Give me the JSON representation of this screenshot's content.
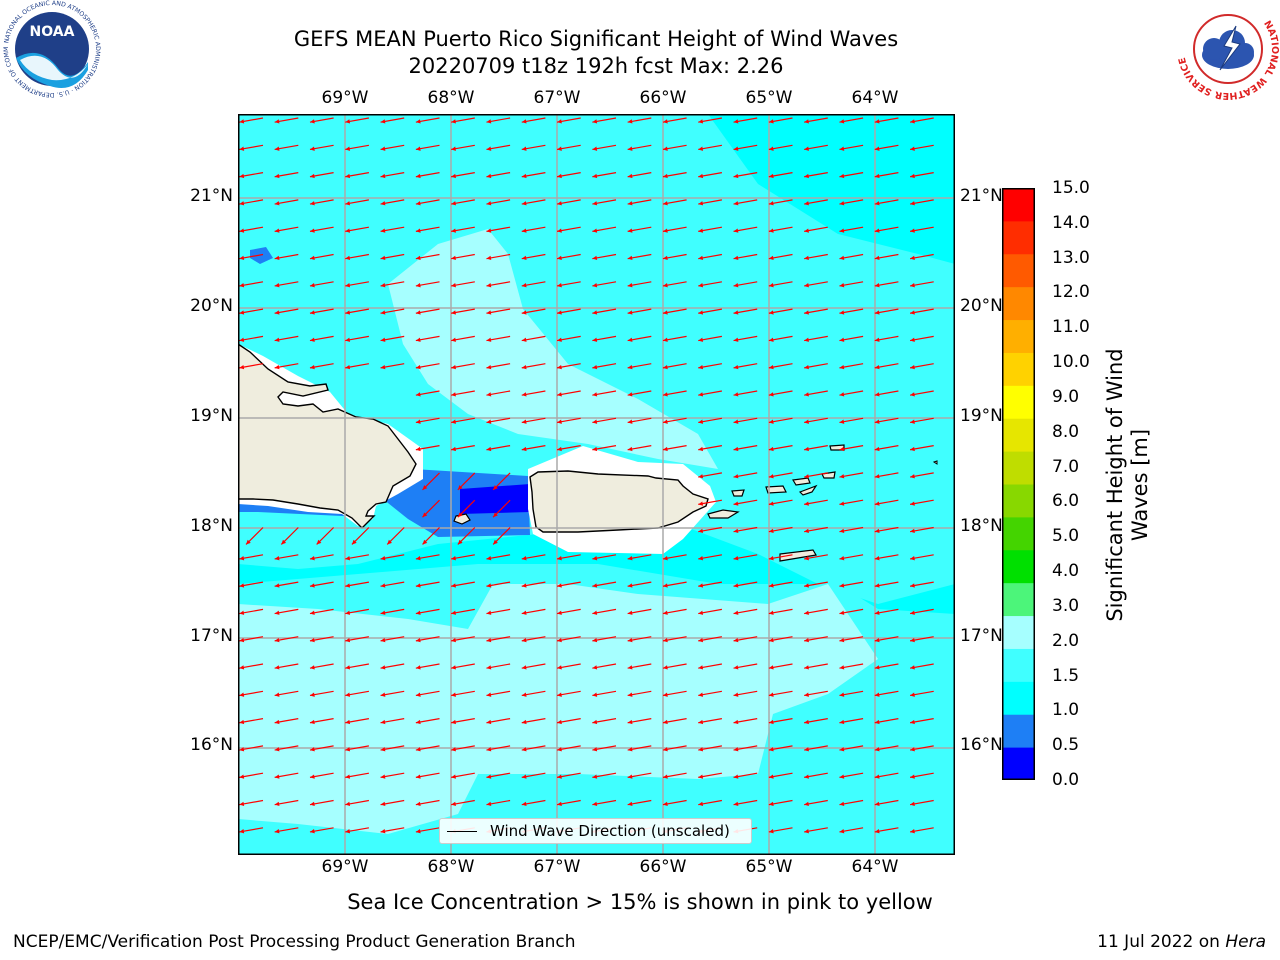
{
  "title": {
    "line1": "GEFS MEAN Puerto Rico Significant Height of Wind Waves",
    "line2": "20220709 t18z 192h fcst   Max: 2.26"
  },
  "logos": {
    "noaa_text": "NOAA",
    "noaa_ring_text": "NATIONAL OCEANIC AND ATMOSPHERIC ADMINISTRATION · U.S. DEPARTMENT OF COMMERCE",
    "nws_ring_text": "NATIONAL WEATHER SERVICE"
  },
  "map": {
    "lon_ticks": [
      "69°W",
      "68°W",
      "67°W",
      "66°W",
      "65°W",
      "64°W"
    ],
    "lat_ticks": [
      "21°N",
      "20°N",
      "19°N",
      "18°N",
      "17°N",
      "16°N"
    ],
    "land_color": "#efedde",
    "coast_color": "#000000",
    "arrow_color": "#ff0000",
    "grid_color": "#aaaaaa",
    "wind_direction": "west-southwest",
    "legend_label": "Wind Wave Direction (unscaled)"
  },
  "colorbar": {
    "label": "Significant Height of Wind Waves [m]",
    "ticks": [
      "0.0",
      "0.5",
      "1.0",
      "1.5",
      "2.0",
      "3.0",
      "4.0",
      "5.0",
      "6.0",
      "7.0",
      "8.0",
      "9.0",
      "10.0",
      "11.0",
      "12.0",
      "13.0",
      "14.0",
      "15.0"
    ],
    "colors": [
      "#0000ff",
      "#1e7ff5",
      "#00ffff",
      "#40ffff",
      "#a6ffff",
      "#4cf57a",
      "#00e000",
      "#44d400",
      "#88d800",
      "#bfdd00",
      "#e6e600",
      "#ffff00",
      "#ffd200",
      "#ffaf00",
      "#ff8800",
      "#ff5a00",
      "#ff2d00",
      "#ff0000"
    ]
  },
  "sea_ice_note": "Sea Ice Concentration > 15% is shown in pink to yellow",
  "footer": {
    "left": "NCEP/EMC/Verification Post Processing Product Generation Branch",
    "date": "11 Jul 2022 on",
    "machine": "Hera"
  }
}
